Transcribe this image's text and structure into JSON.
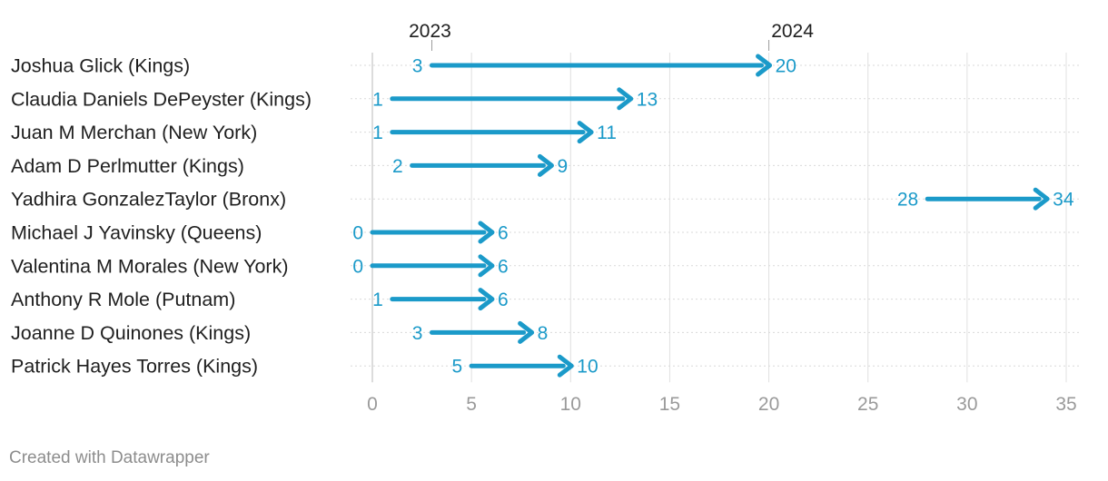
{
  "chart_data": {
    "type": "arrow",
    "from_label": "2023",
    "to_label": "2024",
    "xlim": [
      0,
      35
    ],
    "x_ticks": [
      0,
      5,
      10,
      15,
      20,
      25,
      30,
      35
    ],
    "grid": true,
    "categories": [
      "Joshua Glick (Kings)",
      "Claudia Daniels DePeyster (Kings)",
      "Juan M Merchan (New York)",
      "Adam D Perlmutter (Kings)",
      "Yadhira GonzalezTaylor (Bronx)",
      "Michael J Yavinsky (Queens)",
      "Valentina M Morales (New York)",
      "Anthony R Mole (Putnam)",
      "Joanne D Quinones (Kings)",
      "Patrick Hayes Torres (Kings)"
    ],
    "series": [
      {
        "name": "2023",
        "values": [
          3,
          1,
          1,
          2,
          28,
          0,
          0,
          1,
          3,
          5
        ]
      },
      {
        "name": "2024",
        "values": [
          20,
          13,
          11,
          9,
          34,
          6,
          6,
          6,
          8,
          10
        ]
      }
    ],
    "colors": {
      "arrow": "#1b9ac9",
      "label": "#1b9ac9",
      "axis": "#9a9a9a",
      "text": "#1f1f1f"
    }
  },
  "footer": {
    "credit": "Created with Datawrapper"
  }
}
